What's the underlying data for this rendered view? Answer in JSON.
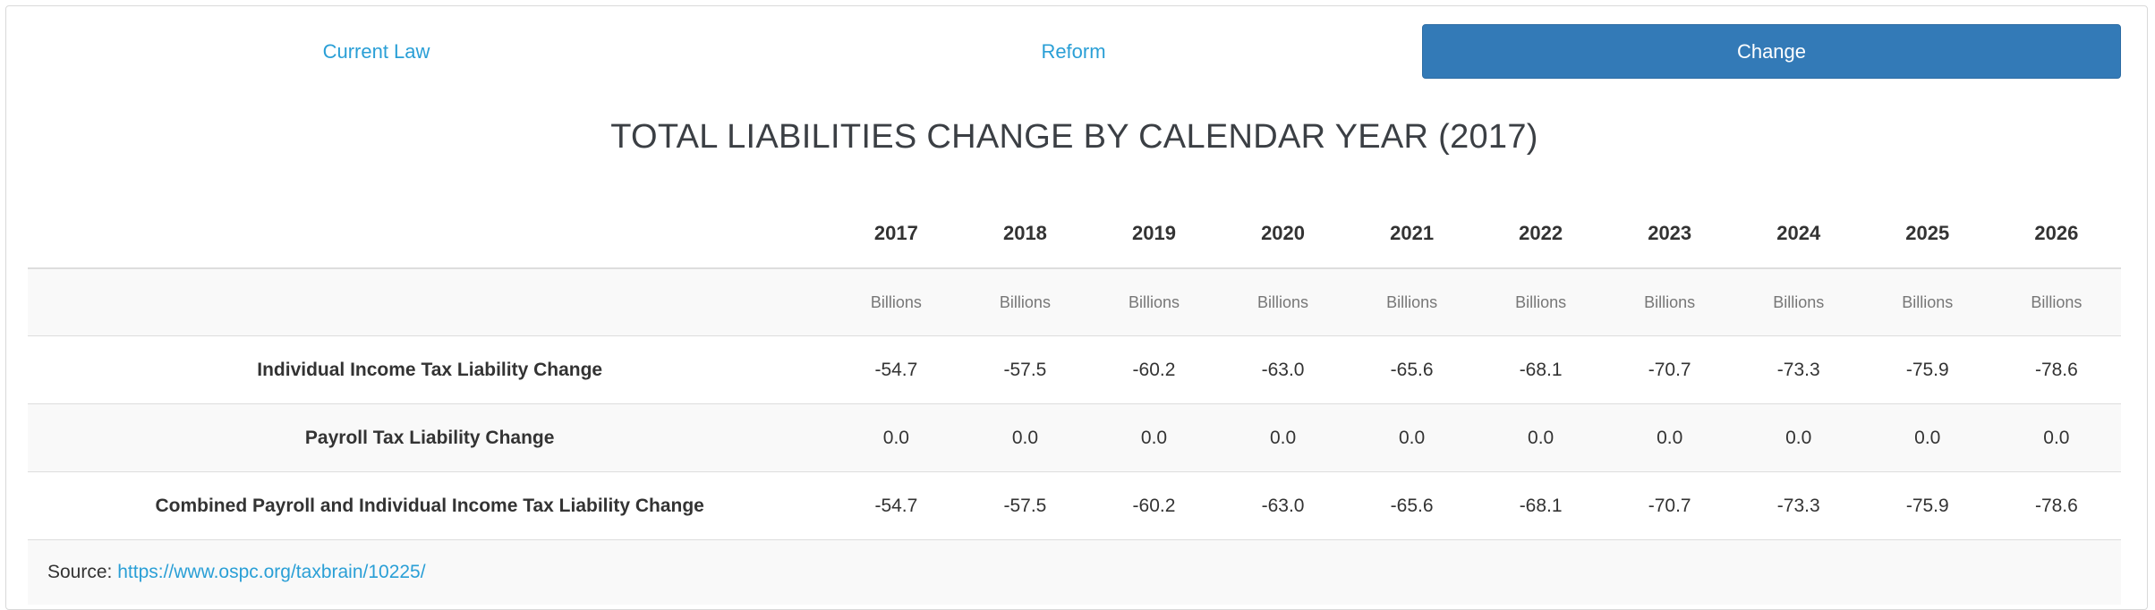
{
  "tabs": [
    {
      "label": "Current Law",
      "active": false
    },
    {
      "label": "Reform",
      "active": false
    },
    {
      "label": "Change",
      "active": true
    }
  ],
  "title": "TOTAL LIABILITIES CHANGE BY CALENDAR YEAR (2017)",
  "table": {
    "years": [
      "2017",
      "2018",
      "2019",
      "2020",
      "2021",
      "2022",
      "2023",
      "2024",
      "2025",
      "2026"
    ],
    "units": [
      "Billions",
      "Billions",
      "Billions",
      "Billions",
      "Billions",
      "Billions",
      "Billions",
      "Billions",
      "Billions",
      "Billions"
    ],
    "rows": [
      {
        "label": "Individual Income Tax Liability Change",
        "values": [
          "-54.7",
          "-57.5",
          "-60.2",
          "-63.0",
          "-65.6",
          "-68.1",
          "-70.7",
          "-73.3",
          "-75.9",
          "-78.6"
        ]
      },
      {
        "label": "Payroll Tax Liability Change",
        "values": [
          "0.0",
          "0.0",
          "0.0",
          "0.0",
          "0.0",
          "0.0",
          "0.0",
          "0.0",
          "0.0",
          "0.0"
        ]
      },
      {
        "label": "Combined Payroll and Individual Income Tax Liability Change",
        "values": [
          "-54.7",
          "-57.5",
          "-60.2",
          "-63.0",
          "-65.6",
          "-68.1",
          "-70.7",
          "-73.3",
          "-75.9",
          "-78.6"
        ]
      }
    ]
  },
  "source": {
    "label": "Source:",
    "url": "https://www.ospc.org/taxbrain/10225/"
  },
  "colors": {
    "accent": "#337ab7",
    "link": "#2a9fd6",
    "stripe": "#f9f9f9"
  }
}
